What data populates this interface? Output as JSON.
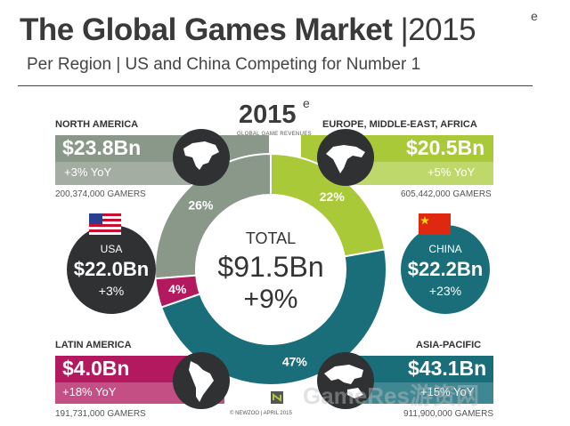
{
  "header": {
    "title": "The Global Games Market",
    "title_year": "|2015",
    "title_superscript": "e",
    "subtitle": "Per Region | US and China Competing for Number 1"
  },
  "center": {
    "year": "2015",
    "year_superscript": "e",
    "year_caption": "GLOBAL GAME REVENUES",
    "label": "TOTAL",
    "total": "$91.5Bn",
    "growth": "+9%"
  },
  "regions": {
    "north_america": {
      "name": "NORTH AMERICA",
      "revenue": "$23.8Bn",
      "yoy": "+3% YoY",
      "gamers": "200,374,000 GAMERS"
    },
    "emea": {
      "name": "EUROPE, MIDDLE-EAST, AFRICA",
      "revenue": "$20.5Bn",
      "yoy": "+5% YoY",
      "gamers": "605,442,000 GAMERS"
    },
    "latin_america": {
      "name": "LATIN AMERICA",
      "revenue": "$4.0Bn",
      "yoy": "+18% YoY",
      "gamers": "191,731,000 GAMERS"
    },
    "asia_pacific": {
      "name": "ASIA-PACIFIC",
      "revenue": "$43.1Bn",
      "yoy": "+15% YoY",
      "gamers": "911,900,000 GAMERS"
    }
  },
  "countries": {
    "usa": {
      "name": "USA",
      "revenue": "$22.0Bn",
      "yoy": "+3%"
    },
    "china": {
      "name": "CHINA",
      "revenue": "$22.2Bn",
      "yoy": "+23%"
    }
  },
  "credit": "© NEWZOO | APRIL 2015",
  "watermark": "GameRes游资网",
  "colors": {
    "north_america": "#8a9889",
    "emea": "#a9c938",
    "latin_america": "#b3195f",
    "asia_pacific": "#1a6e7a",
    "dark_circle": "#2f3133",
    "china_circle": "#1a6e7a"
  },
  "icons": [
    "north-america-map-icon",
    "europe-map-icon",
    "latin-america-map-icon",
    "asia-pacific-map-icon",
    "usa-flag-icon",
    "china-flag-icon",
    "newzoo-logo-icon"
  ],
  "chart_data": {
    "type": "pie",
    "categories": [
      "North America",
      "Europe, Middle-East, Africa",
      "Asia-Pacific",
      "Latin America"
    ],
    "values": [
      26,
      22,
      47,
      4
    ],
    "value_labels": [
      "26%",
      "22%",
      "47%",
      "4%"
    ],
    "revenues_bn": [
      23.8,
      20.5,
      43.1,
      4.0
    ],
    "title": "The Global Games Market |2015",
    "donut": true
  }
}
